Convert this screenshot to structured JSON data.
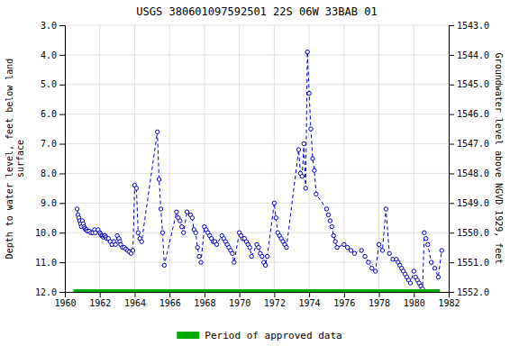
{
  "chart_data": {
    "type": "line",
    "title": "USGS 380601097592501 22S 06W 33BAB 01",
    "ylabel": "Depth to water level, feet below land\nsurface",
    "y2label": "Groundwater level above NGVD 1929, feet",
    "xlim": [
      1960,
      1982
    ],
    "xticks": [
      1960,
      1962,
      1964,
      1966,
      1968,
      1970,
      1972,
      1974,
      1976,
      1978,
      1980,
      1982
    ],
    "ylim": [
      12.0,
      3.0
    ],
    "yticks": [
      {
        "value": 3.0,
        "label": "3.0"
      },
      {
        "value": 4.0,
        "label": "4.0"
      },
      {
        "value": 5.0,
        "label": "5.0"
      },
      {
        "value": 6.0,
        "label": "6.0"
      },
      {
        "value": 7.0,
        "label": "7.0"
      },
      {
        "value": 8.0,
        "label": "8.0"
      },
      {
        "value": 9.0,
        "label": "9.0"
      },
      {
        "value": 10.0,
        "label": "10.0"
      },
      {
        "value": 11.0,
        "label": "11.0"
      },
      {
        "value": 12.0,
        "label": "12.0"
      }
    ],
    "y2lim": [
      1552.0,
      1543.0
    ],
    "y2ticks": [
      {
        "value": 1552.0,
        "label": "1552.0"
      },
      {
        "value": 1551.0,
        "label": "1551.0"
      },
      {
        "value": 1550.0,
        "label": "1550.0"
      },
      {
        "value": 1549.0,
        "label": "1549.0"
      },
      {
        "value": 1548.0,
        "label": "1548.0"
      },
      {
        "value": 1547.0,
        "label": "1547.0"
      },
      {
        "value": 1546.0,
        "label": "1546.0"
      },
      {
        "value": 1545.0,
        "label": "1545.0"
      },
      {
        "value": 1544.0,
        "label": "1544.0"
      },
      {
        "value": 1543.0,
        "label": "1543.0"
      }
    ],
    "grid": true,
    "legend": "bottom",
    "series": [
      {
        "color": "#0000cc",
        "marker": "circle",
        "line_style": "dashed",
        "x": [
          1960.7,
          1960.75,
          1960.8,
          1960.85,
          1960.9,
          1960.95,
          1961.0,
          1961.05,
          1961.1,
          1961.15,
          1961.2,
          1961.25,
          1961.3,
          1961.4,
          1961.5,
          1961.6,
          1961.7,
          1961.75,
          1961.9,
          1962.0,
          1962.05,
          1962.1,
          1962.15,
          1962.2,
          1962.25,
          1962.3,
          1962.35,
          1962.4,
          1962.5,
          1962.6,
          1962.7,
          1962.8,
          1962.9,
          1963.0,
          1963.1,
          1963.15,
          1963.2,
          1963.3,
          1963.4,
          1963.5,
          1963.6,
          1963.7,
          1963.8,
          1963.9,
          1964.0,
          1964.1,
          1964.2,
          1964.3,
          1964.4,
          1965.3,
          1965.4,
          1965.5,
          1965.6,
          1965.7,
          1966.4,
          1966.5,
          1966.6,
          1966.7,
          1966.8,
          1967.0,
          1967.2,
          1967.3,
          1967.4,
          1967.5,
          1967.6,
          1967.7,
          1967.8,
          1968.0,
          1968.1,
          1968.2,
          1968.3,
          1968.4,
          1968.5,
          1968.6,
          1968.7,
          1969.0,
          1969.1,
          1969.2,
          1969.3,
          1969.4,
          1969.5,
          1969.6,
          1969.7,
          1970.0,
          1970.1,
          1970.2,
          1970.3,
          1970.4,
          1970.5,
          1970.6,
          1970.7,
          1971.0,
          1971.1,
          1971.2,
          1971.3,
          1971.4,
          1971.5,
          1971.6,
          1972.0,
          1972.1,
          1972.2,
          1972.3,
          1972.4,
          1972.5,
          1972.6,
          1972.7,
          1973.4,
          1973.5,
          1973.6,
          1973.7,
          1973.8,
          1973.9,
          1974.0,
          1974.1,
          1974.2,
          1974.3,
          1974.4,
          1975.0,
          1975.1,
          1975.2,
          1975.3,
          1975.4,
          1975.5,
          1975.6,
          1976.0,
          1976.2,
          1976.4,
          1976.6,
          1977.0,
          1977.2,
          1977.4,
          1977.6,
          1977.8,
          1978.0,
          1978.2,
          1978.4,
          1978.6,
          1978.8,
          1979.0,
          1979.1,
          1979.2,
          1979.3,
          1979.4,
          1979.5,
          1979.6,
          1979.7,
          1979.8,
          1980.0,
          1980.1,
          1980.2,
          1980.3,
          1980.4,
          1980.5,
          1980.6,
          1980.7,
          1980.8,
          1981.0,
          1981.2,
          1981.4,
          1981.6
        ],
        "values": [
          9.2,
          9.4,
          9.5,
          9.6,
          9.7,
          9.8,
          9.6,
          9.7,
          9.8,
          9.85,
          9.9,
          9.9,
          9.95,
          9.95,
          10.0,
          10.0,
          9.9,
          10.0,
          9.9,
          10.0,
          10.05,
          10.1,
          10.1,
          10.15,
          10.1,
          10.1,
          10.15,
          10.2,
          10.2,
          10.3,
          10.4,
          10.3,
          10.4,
          10.1,
          10.2,
          10.3,
          10.4,
          10.5,
          10.5,
          10.55,
          10.6,
          10.65,
          10.7,
          10.6,
          8.4,
          8.5,
          10.0,
          10.2,
          10.3,
          6.6,
          8.2,
          9.2,
          10.0,
          11.1,
          9.3,
          9.5,
          9.6,
          9.8,
          10.0,
          9.3,
          9.4,
          9.5,
          9.9,
          10.0,
          10.5,
          10.8,
          11.0,
          9.8,
          9.9,
          10.0,
          10.1,
          10.2,
          10.3,
          10.3,
          10.4,
          10.1,
          10.2,
          10.3,
          10.4,
          10.5,
          10.6,
          10.7,
          11.0,
          10.0,
          10.1,
          10.2,
          10.2,
          10.3,
          10.4,
          10.5,
          10.8,
          10.4,
          10.5,
          10.7,
          10.8,
          11.0,
          11.1,
          10.8,
          9.0,
          9.5,
          10.0,
          10.1,
          10.2,
          10.3,
          10.4,
          10.5,
          7.2,
          8.0,
          8.1,
          7.0,
          8.5,
          3.9,
          5.3,
          6.5,
          7.5,
          7.9,
          8.7,
          9.2,
          9.4,
          9.6,
          9.8,
          10.1,
          10.3,
          10.5,
          10.4,
          10.5,
          10.6,
          10.7,
          10.6,
          10.8,
          11.0,
          11.2,
          11.3,
          10.4,
          10.6,
          9.2,
          10.7,
          10.9,
          10.9,
          11.0,
          11.1,
          11.2,
          11.3,
          11.4,
          11.5,
          11.6,
          11.7,
          11.3,
          11.5,
          11.6,
          11.7,
          11.8,
          11.9,
          10.0,
          10.2,
          10.4,
          11.0,
          11.2,
          11.5,
          10.6
        ]
      },
      {
        "name": "Period of approved data",
        "color": "#00aa00",
        "marker": "none",
        "line_style": "solid",
        "x": [
          1960.5,
          1981.5
        ],
        "values": [
          12.0,
          12.0
        ]
      }
    ]
  }
}
